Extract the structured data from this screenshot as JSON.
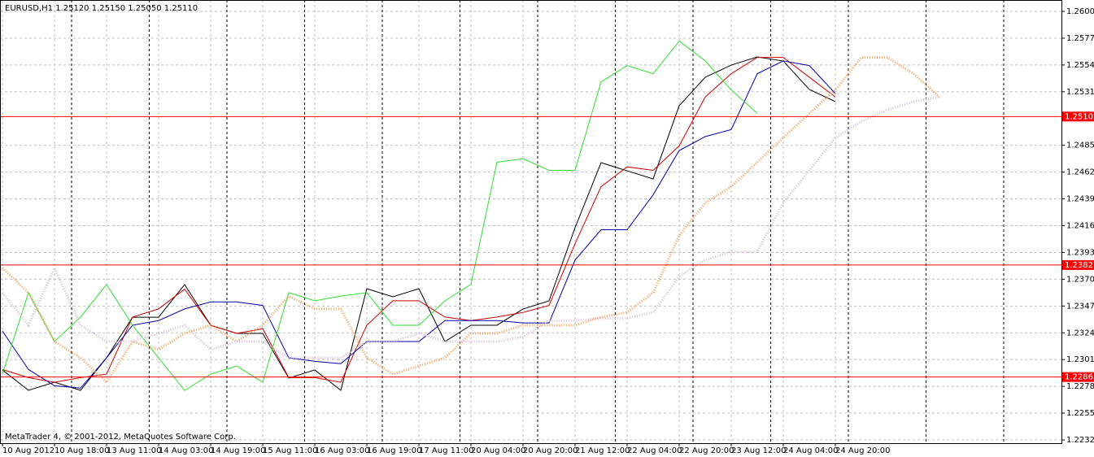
{
  "chart_data": {
    "type": "line",
    "title": "EURUSD,H1  1.25120 1.25150 1.25050 1.25110",
    "footer": "MetaTrader 4, © 2001-2012, MetaQuotes Software Corp.",
    "categories": [
      "10 Aug 2012",
      null,
      "10 Aug 18:00",
      null,
      "13 Aug 11:00",
      null,
      "14 Aug 03:00",
      null,
      "14 Aug 19:00",
      null,
      "15 Aug 11:00",
      null,
      "16 Aug 03:00",
      null,
      "16 Aug 19:00",
      null,
      "17 Aug 11:00",
      null,
      "20 Aug 04:00",
      null,
      "20 Aug 20:00",
      null,
      "21 Aug 12:00",
      null,
      "22 Aug 04:00",
      null,
      "22 Aug 20:00",
      null,
      "23 Aug 12:00",
      null,
      "24 Aug 04:00",
      null,
      "24 Aug 20:00",
      null,
      null,
      null,
      null
    ],
    "series": [
      {
        "color": "#000000",
        "values": [
          1.22926,
          1.22751,
          1.22821,
          1.22751,
          1.2303,
          1.23379,
          1.23379,
          1.23659,
          1.2331,
          1.2324,
          1.2324,
          1.22856,
          1.22926,
          1.22751,
          1.23624,
          1.23554,
          1.23624,
          1.2317,
          1.2331,
          1.2331,
          1.23449,
          1.23519,
          1.24148,
          1.24706,
          1.24636,
          1.24567,
          1.25195,
          1.25439,
          1.25544,
          1.25614,
          1.25579,
          1.25335,
          1.2523,
          null,
          null,
          null,
          null
        ]
      },
      {
        "color": "#cc0000",
        "values": [
          1.2293,
          1.2286,
          1.2282,
          1.2286,
          1.2289,
          1.2338,
          1.2345,
          1.2362,
          1.2331,
          1.2324,
          1.2328,
          1.2286,
          1.2286,
          1.2282,
          1.2331,
          1.2352,
          1.2352,
          1.2338,
          1.2335,
          1.2338,
          1.2342,
          1.2348,
          1.2401,
          1.245,
          1.2467,
          1.2464,
          1.2485,
          1.2527,
          1.2547,
          1.2561,
          1.2561,
          1.2544,
          1.2527,
          null,
          null,
          null,
          null
        ]
      },
      {
        "color": "#0000aa",
        "values": [
          1.2326,
          1.2293,
          1.2279,
          1.2277,
          1.2303,
          1.2331,
          1.2335,
          1.2345,
          1.2351,
          1.2351,
          1.2348,
          1.2303,
          1.23,
          1.2298,
          1.2317,
          1.2317,
          1.2317,
          1.2335,
          1.2335,
          1.2335,
          1.2333,
          1.2333,
          1.2387,
          1.2413,
          1.2413,
          1.2443,
          1.2481,
          1.2493,
          1.2499,
          1.2547,
          1.2558,
          1.2554,
          1.253,
          null,
          null,
          null,
          null
        ]
      },
      {
        "color": "#33dd33",
        "values": [
          1.2289,
          1.2359,
          1.2317,
          1.2338,
          1.2366,
          1.2331,
          1.2303,
          1.2275,
          1.2289,
          1.2296,
          1.2282,
          1.2359,
          1.2352,
          1.2356,
          1.2359,
          1.2331,
          1.2331,
          1.2352,
          1.2366,
          1.2471,
          1.2474,
          1.2464,
          1.2464,
          1.254,
          1.2554,
          1.2547,
          1.2575,
          1.2558,
          1.2533,
          1.2513,
          null,
          null,
          null,
          null,
          null,
          null,
          null
        ]
      },
      {
        "color": "#f4a460",
        "dotted": true,
        "values": [
          1.238,
          1.2359,
          1.2317,
          1.2303,
          1.2282,
          1.2317,
          1.231,
          1.2324,
          1.2331,
          1.2317,
          1.2331,
          1.2356,
          1.2345,
          1.2345,
          1.2303,
          1.2289,
          1.2296,
          1.2303,
          1.2324,
          1.2324,
          1.2331,
          1.2331,
          1.2331,
          1.2338,
          1.2342,
          1.2359,
          1.2408,
          1.2436,
          1.245,
          1.2471,
          1.2492,
          1.2513,
          1.2533,
          1.2561,
          1.2561,
          1.2547,
          1.2527
        ]
      },
      {
        "color": "#d8bfd8",
        "dotted": true,
        "values": [
          1.2359,
          1.2331,
          1.238,
          1.2331,
          1.2317,
          1.2317,
          1.2324,
          1.2331,
          1.231,
          1.2317,
          1.2317,
          1.2303,
          1.2303,
          1.2303,
          1.2317,
          1.2317,
          1.2324,
          1.2317,
          1.2317,
          1.2317,
          1.2321,
          1.2335,
          1.2335,
          1.2337,
          1.2337,
          1.2342,
          1.2373,
          1.2387,
          1.2394,
          1.2394,
          1.2436,
          1.2464,
          1.2492,
          1.2506,
          1.2516,
          1.2523,
          1.2527
        ]
      }
    ],
    "levels": [
      1.25102,
      1.23827,
      1.22865
    ],
    "level_color": "#ff0000",
    "ylim": [
      1.22297,
      1.26103
    ],
    "yticks": [
      1.26005,
      1.25775,
      1.25545,
      1.25315,
      1.24855,
      1.24625,
      1.24395,
      1.24165,
      1.23935,
      1.23705,
      1.23475,
      1.23245,
      1.23015,
      1.22785,
      1.22555,
      1.22325
    ],
    "grid": true
  }
}
